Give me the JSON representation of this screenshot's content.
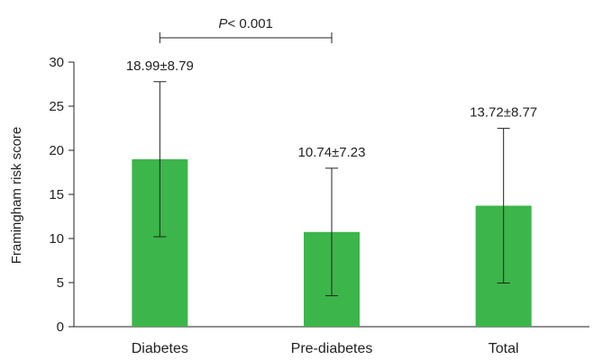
{
  "chart_data": {
    "type": "bar",
    "title": "",
    "xlabel": "",
    "ylabel": "Framingham risk score",
    "categories": [
      "Diabetes",
      "Pre-diabetes",
      "Total"
    ],
    "values": [
      18.99,
      10.74,
      13.72
    ],
    "errors": [
      8.79,
      7.23,
      8.77
    ],
    "data_labels": [
      "18.99±8.79",
      "10.74±7.23",
      "13.72±8.77"
    ],
    "ylim": [
      0,
      30
    ],
    "yticks": [
      0,
      5,
      10,
      15,
      20,
      25,
      30
    ],
    "grid": false,
    "bar_color": "#3cb54a",
    "significance": {
      "from": "Diabetes",
      "to": "Pre-diabetes",
      "italic_part": "P",
      "rest": "< 0.001"
    }
  }
}
